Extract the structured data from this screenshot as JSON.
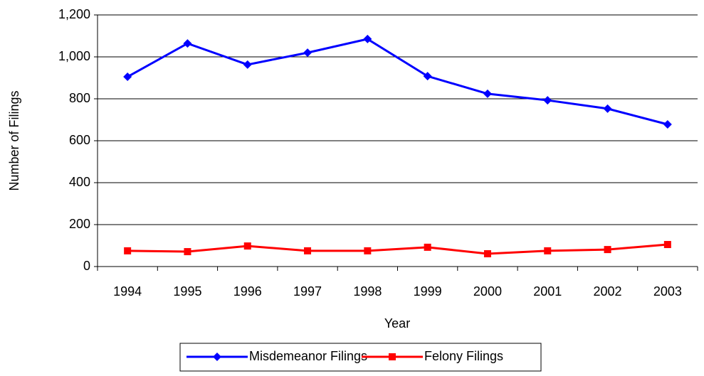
{
  "chart_data": {
    "type": "line",
    "x_label": "Year",
    "y_label": "Number of Filings",
    "categories": [
      "1994",
      "1995",
      "1996",
      "1997",
      "1998",
      "1999",
      "2000",
      "2001",
      "2002",
      "2003"
    ],
    "series": [
      {
        "name": "Misdemeanor Filings",
        "color": "#0000ff",
        "marker": "diamond",
        "values": [
          905,
          1064,
          963,
          1020,
          1085,
          908,
          824,
          793,
          753,
          678
        ]
      },
      {
        "name": "Felony Filings",
        "color": "#ff0000",
        "marker": "square",
        "values": [
          75,
          71,
          98,
          75,
          75,
          92,
          61,
          75,
          81,
          105
        ]
      }
    ],
    "ylim": [
      0,
      1200
    ],
    "yticks": [
      0,
      200,
      400,
      600,
      800,
      {
        "value": 1000,
        "label": "1,000"
      },
      {
        "value": 1200,
        "label": "1,200"
      }
    ],
    "grid": true,
    "legend": "bottom"
  }
}
